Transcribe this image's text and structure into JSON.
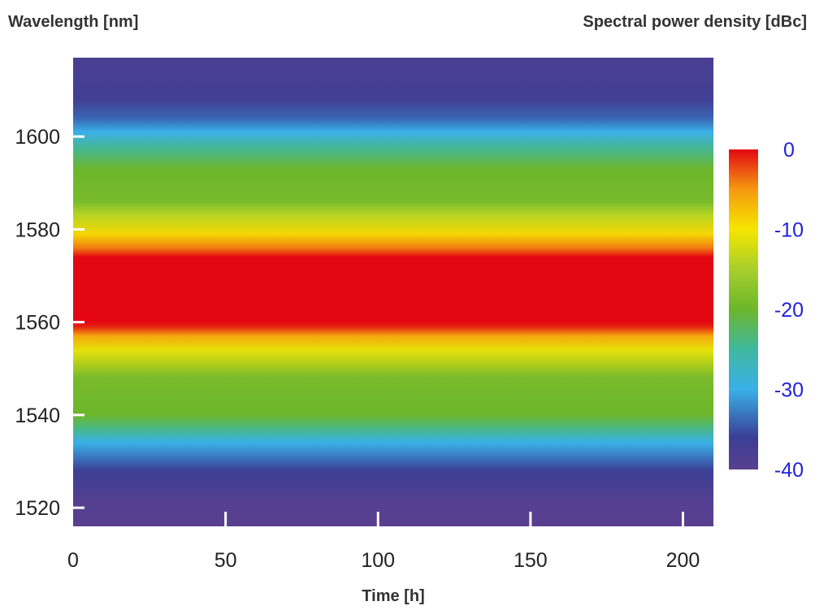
{
  "chart_data": {
    "type": "heatmap",
    "ylabel": "Wavelength [nm]",
    "xlabel": "Time [h]",
    "colorbar_label": "Spectral power density [dBc]",
    "xlim": [
      0,
      210
    ],
    "ylim": [
      1516,
      1617
    ],
    "x_ticks": [
      0,
      50,
      100,
      150,
      200
    ],
    "y_ticks": [
      1520,
      1540,
      1560,
      1580,
      1600
    ],
    "colorbar_range": [
      -40,
      0
    ],
    "colorbar_ticks": [
      0,
      -10,
      -20,
      -30,
      -40
    ],
    "tick_label_color": "#2222dd",
    "axis_tick_label_color": "#222222",
    "tick_mark_color": "#ffffff",
    "colormap": [
      {
        "value": -40,
        "color": "#5a3f8f"
      },
      {
        "value": -36,
        "color": "#3a3f95"
      },
      {
        "value": -30,
        "color": "#3ab0e8"
      },
      {
        "value": -25,
        "color": "#3fb8a0"
      },
      {
        "value": -20,
        "color": "#6cb62b"
      },
      {
        "value": -15,
        "color": "#a8cf2c"
      },
      {
        "value": -10,
        "color": "#f5e600"
      },
      {
        "value": -5,
        "color": "#f59a10"
      },
      {
        "value": 0,
        "color": "#e30613"
      }
    ],
    "spectrum_profile": [
      {
        "wavelength": 1516,
        "level": -40
      },
      {
        "wavelength": 1522,
        "level": -39
      },
      {
        "wavelength": 1528,
        "level": -36
      },
      {
        "wavelength": 1531,
        "level": -33
      },
      {
        "wavelength": 1534,
        "level": -30
      },
      {
        "wavelength": 1537,
        "level": -24
      },
      {
        "wavelength": 1540,
        "level": -20
      },
      {
        "wavelength": 1548,
        "level": -19
      },
      {
        "wavelength": 1554,
        "level": -11
      },
      {
        "wavelength": 1557,
        "level": -6
      },
      {
        "wavelength": 1559,
        "level": -1
      },
      {
        "wavelength": 1560,
        "level": 0
      },
      {
        "wavelength": 1574,
        "level": 0
      },
      {
        "wavelength": 1576,
        "level": -4
      },
      {
        "wavelength": 1579,
        "level": -9
      },
      {
        "wavelength": 1583,
        "level": -14
      },
      {
        "wavelength": 1586,
        "level": -19
      },
      {
        "wavelength": 1593,
        "level": -20
      },
      {
        "wavelength": 1597,
        "level": -24
      },
      {
        "wavelength": 1601,
        "level": -30
      },
      {
        "wavelength": 1604,
        "level": -34
      },
      {
        "wavelength": 1608,
        "level": -37
      },
      {
        "wavelength": 1617,
        "level": -38
      }
    ]
  }
}
